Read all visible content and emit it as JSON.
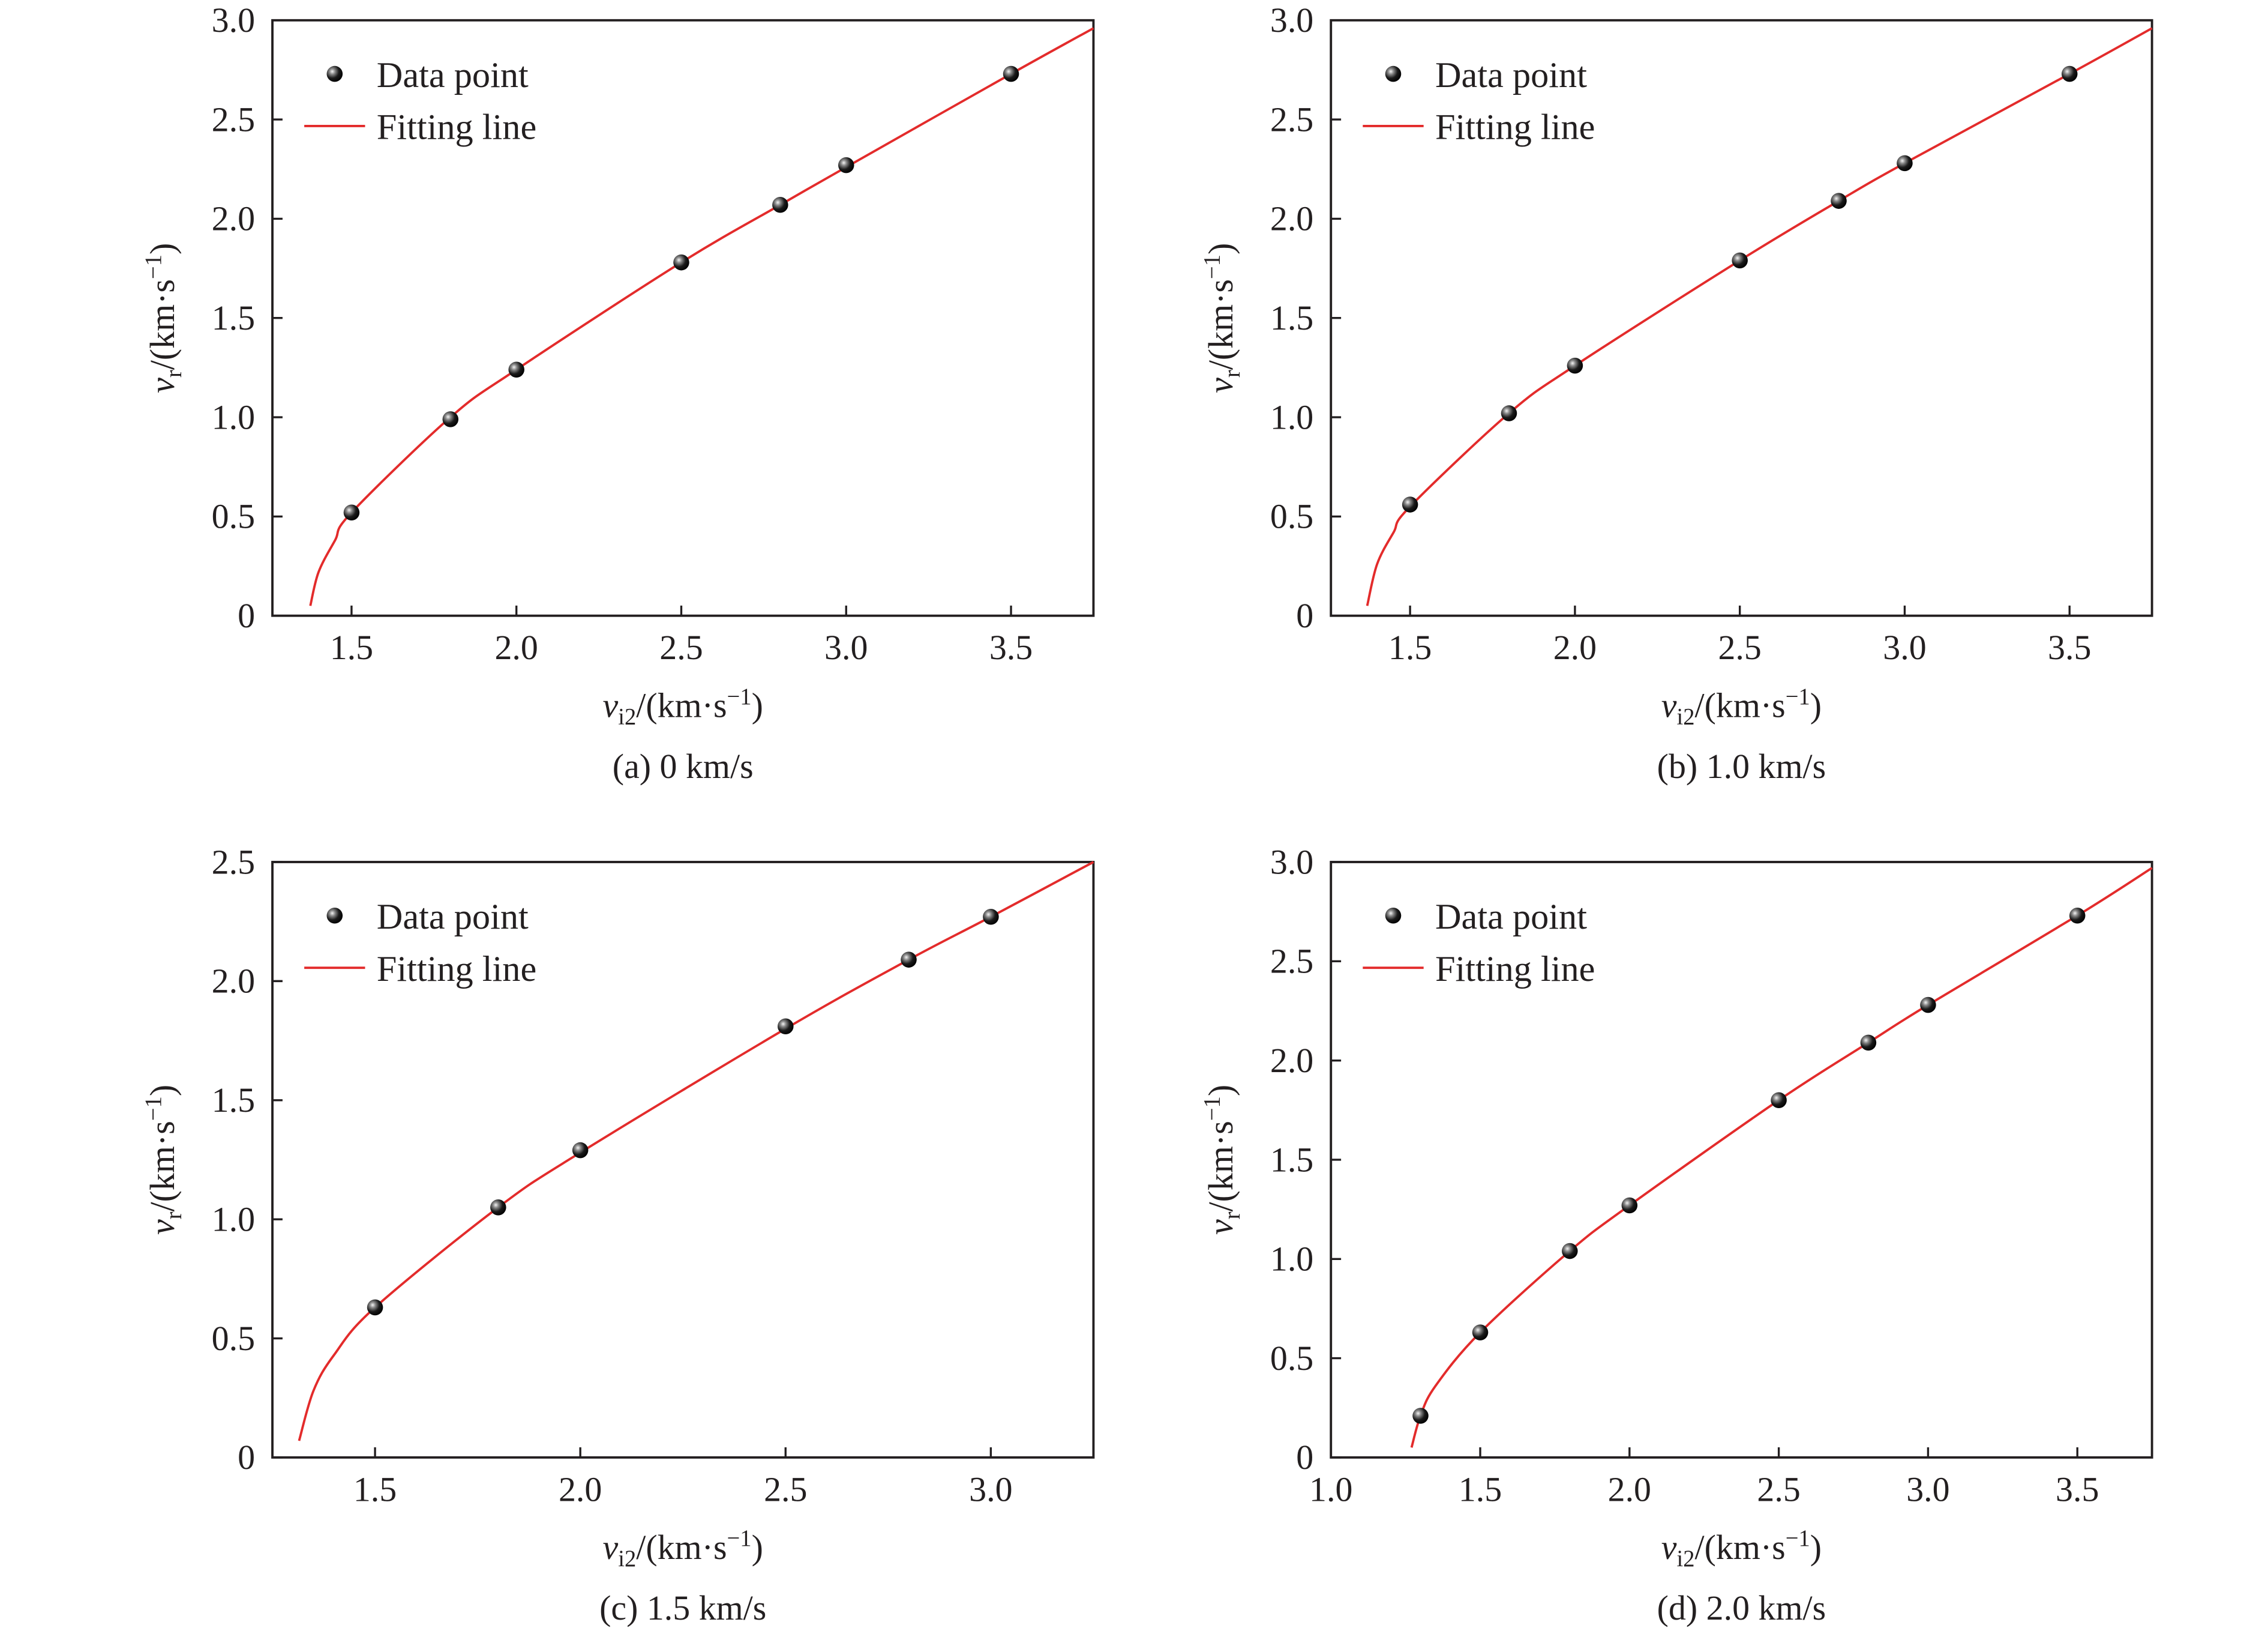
{
  "colors": {
    "fit_line": "#e32b2b",
    "marker": "#1a1a1a",
    "axis": "#231f20"
  },
  "chart_data": [
    {
      "type": "scatter",
      "caption": "(a) 0 km/s",
      "xlabel": {
        "var": "v",
        "sub": "i2",
        "unit": "/(km·s",
        "sup": "−1",
        "close": ")"
      },
      "ylabel": {
        "var": "v",
        "sub": "r",
        "unit": "/(km·s",
        "sup": "−1",
        "close": ")"
      },
      "xlim": [
        1.26,
        3.75
      ],
      "ylim": [
        0,
        3.0
      ],
      "xticks": [
        "1.5",
        "2.0",
        "2.5",
        "3.0",
        "3.5"
      ],
      "yticks": [
        "0",
        "0.5",
        "1.0",
        "1.5",
        "2.0",
        "2.5",
        "3.0"
      ],
      "legend": {
        "position": "top-left",
        "entries": [
          "Data point",
          "Fitting line"
        ]
      },
      "grid": false,
      "series": [
        {
          "name": "Data point",
          "kind": "marker",
          "x": [
            1.5,
            1.8,
            2.0,
            2.5,
            2.8,
            3.0,
            3.5
          ],
          "y": [
            0.52,
            0.99,
            1.24,
            1.78,
            2.07,
            2.27,
            2.73
          ]
        },
        {
          "name": "Fitting line",
          "kind": "line",
          "x": [
            1.375,
            1.4,
            1.45,
            1.5,
            1.8,
            2.0,
            2.5,
            2.8,
            3.0,
            3.5,
            3.75
          ],
          "y": [
            0.05,
            0.22,
            0.38,
            0.52,
            1.0,
            1.24,
            1.78,
            2.07,
            2.26,
            2.73,
            2.96
          ]
        }
      ]
    },
    {
      "type": "scatter",
      "caption": "(b) 1.0 km/s",
      "xlabel": {
        "var": "v",
        "sub": "i2",
        "unit": "/(km·s",
        "sup": "−1",
        "close": ")"
      },
      "ylabel": {
        "var": "v",
        "sub": "r",
        "unit": "/(km·s",
        "sup": "−1",
        "close": ")"
      },
      "xlim": [
        1.26,
        3.75
      ],
      "ylim": [
        0,
        3.0
      ],
      "xticks": [
        "1.5",
        "2.0",
        "2.5",
        "3.0",
        "3.5"
      ],
      "yticks": [
        "0",
        "0.5",
        "1.0",
        "1.5",
        "2.0",
        "2.5",
        "3.0"
      ],
      "legend": {
        "position": "top-left",
        "entries": [
          "Data point",
          "Fitting line"
        ]
      },
      "grid": false,
      "series": [
        {
          "name": "Data point",
          "kind": "marker",
          "x": [
            1.5,
            1.8,
            2.0,
            2.5,
            2.8,
            3.0,
            3.5
          ],
          "y": [
            0.56,
            1.02,
            1.26,
            1.79,
            2.09,
            2.28,
            2.73
          ]
        },
        {
          "name": "Fitting line",
          "kind": "line",
          "x": [
            1.37,
            1.4,
            1.45,
            1.5,
            1.8,
            2.0,
            2.5,
            2.8,
            3.0,
            3.5,
            3.75
          ],
          "y": [
            0.05,
            0.26,
            0.42,
            0.55,
            1.02,
            1.26,
            1.79,
            2.09,
            2.28,
            2.73,
            2.96
          ]
        }
      ]
    },
    {
      "type": "scatter",
      "caption": "(c) 1.5 km/s",
      "xlabel": {
        "var": "v",
        "sub": "i2",
        "unit": "/(km·s",
        "sup": "−1",
        "close": ")"
      },
      "ylabel": {
        "var": "v",
        "sub": "r",
        "unit": "/(km·s",
        "sup": "−1",
        "close": ")"
      },
      "xlim": [
        1.25,
        3.25
      ],
      "ylim": [
        0,
        2.5
      ],
      "xticks": [
        "1.5",
        "2.0",
        "2.5",
        "3.0"
      ],
      "yticks": [
        "0",
        "0.5",
        "1.0",
        "1.5",
        "2.0",
        "2.5"
      ],
      "legend": {
        "position": "top-left",
        "entries": [
          "Data point",
          "Fitting line"
        ]
      },
      "grid": false,
      "series": [
        {
          "name": "Data point",
          "kind": "marker",
          "x": [
            1.5,
            1.8,
            2.0,
            2.5,
            2.8,
            3.0
          ],
          "y": [
            0.63,
            1.05,
            1.29,
            1.81,
            2.09,
            2.27
          ]
        },
        {
          "name": "Fitting line",
          "kind": "line",
          "x": [
            1.315,
            1.35,
            1.4,
            1.5,
            1.8,
            2.0,
            2.5,
            2.8,
            3.0,
            3.25
          ],
          "y": [
            0.07,
            0.28,
            0.43,
            0.63,
            1.05,
            1.28,
            1.8,
            2.09,
            2.27,
            2.5
          ]
        }
      ]
    },
    {
      "type": "scatter",
      "caption": "(d) 2.0 km/s",
      "xlabel": {
        "var": "v",
        "sub": "i2",
        "unit": "/(km·s",
        "sup": "−1",
        "close": ")"
      },
      "ylabel": {
        "var": "v",
        "sub": "r",
        "unit": "/(km·s",
        "sup": "−1",
        "close": ")"
      },
      "xlim": [
        1.0,
        3.75
      ],
      "ylim": [
        0,
        3.0
      ],
      "xticks": [
        "1.0",
        "1.5",
        "2.0",
        "2.5",
        "3.0",
        "3.5"
      ],
      "yticks": [
        "0",
        "0.5",
        "1.0",
        "1.5",
        "2.0",
        "2.5",
        "3.0"
      ],
      "legend": {
        "position": "top-left",
        "entries": [
          "Data point",
          "Fitting line"
        ]
      },
      "grid": false,
      "series": [
        {
          "name": "Data point",
          "kind": "marker",
          "x": [
            1.3,
            1.5,
            1.8,
            2.0,
            2.5,
            2.8,
            3.0,
            3.5
          ],
          "y": [
            0.21,
            0.63,
            1.04,
            1.27,
            1.8,
            2.09,
            2.28,
            2.73
          ]
        },
        {
          "name": "Fitting line",
          "kind": "line",
          "x": [
            1.27,
            1.3,
            1.35,
            1.5,
            1.8,
            2.0,
            2.5,
            2.8,
            3.0,
            3.5,
            3.75
          ],
          "y": [
            0.05,
            0.21,
            0.36,
            0.63,
            1.04,
            1.27,
            1.8,
            2.09,
            2.28,
            2.73,
            2.97
          ]
        }
      ]
    }
  ]
}
